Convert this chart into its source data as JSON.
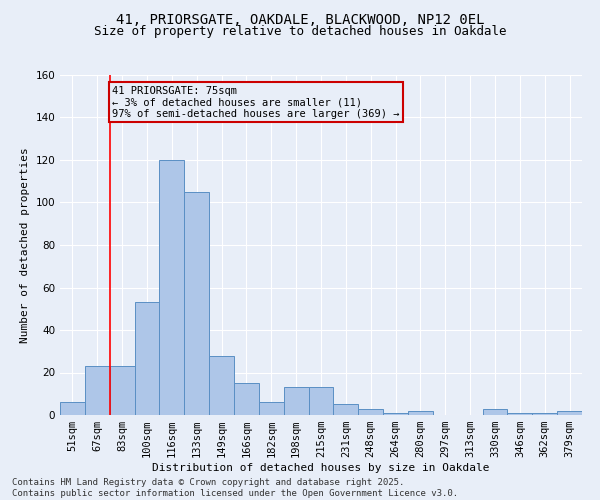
{
  "title_line1": "41, PRIORSGATE, OAKDALE, BLACKWOOD, NP12 0EL",
  "title_line2": "Size of property relative to detached houses in Oakdale",
  "xlabel": "Distribution of detached houses by size in Oakdale",
  "ylabel": "Number of detached properties",
  "bar_color": "#aec6e8",
  "bar_edge_color": "#5a8fc4",
  "background_color": "#e8eef8",
  "grid_color": "#ffffff",
  "categories": [
    "51sqm",
    "67sqm",
    "83sqm",
    "100sqm",
    "116sqm",
    "133sqm",
    "149sqm",
    "166sqm",
    "182sqm",
    "198sqm",
    "215sqm",
    "231sqm",
    "248sqm",
    "264sqm",
    "280sqm",
    "297sqm",
    "313sqm",
    "330sqm",
    "346sqm",
    "362sqm",
    "379sqm"
  ],
  "values": [
    6,
    23,
    23,
    53,
    120,
    105,
    28,
    15,
    6,
    13,
    13,
    5,
    3,
    1,
    2,
    0,
    0,
    3,
    1,
    1,
    2
  ],
  "ylim": [
    0,
    160
  ],
  "yticks": [
    0,
    20,
    40,
    60,
    80,
    100,
    120,
    140,
    160
  ],
  "red_line_x": 1.5,
  "annotation_text": "41 PRIORSGATE: 75sqm\n← 3% of detached houses are smaller (11)\n97% of semi-detached houses are larger (369) →",
  "annotation_box_color": "#cc0000",
  "footer_text": "Contains HM Land Registry data © Crown copyright and database right 2025.\nContains public sector information licensed under the Open Government Licence v3.0.",
  "title_fontsize": 10,
  "subtitle_fontsize": 9,
  "axis_label_fontsize": 8,
  "tick_fontsize": 7.5,
  "annotation_fontsize": 7.5,
  "footer_fontsize": 6.5
}
